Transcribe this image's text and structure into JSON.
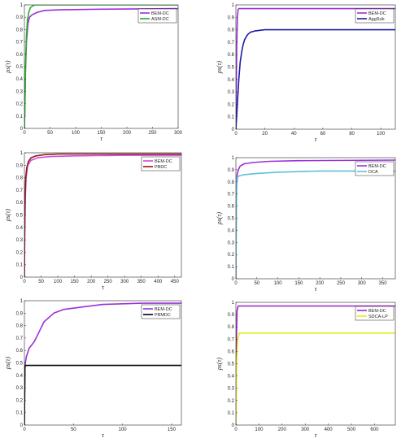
{
  "chart_data": [
    {
      "type": "line",
      "xlabel": "τ",
      "ylabel": "ρs(τ)",
      "xlim": [
        0,
        300
      ],
      "ylim": [
        0,
        1
      ],
      "xticks": [
        0,
        50,
        100,
        150,
        200,
        250,
        300
      ],
      "yticks": [
        0,
        0.1,
        0.2,
        0.3,
        0.4,
        0.5,
        0.6,
        0.7,
        0.8,
        0.9,
        1
      ],
      "grid": false,
      "legend": "top-right",
      "series": [
        {
          "name": "BEM-DC",
          "color": "#9b30d9",
          "x": [
            0,
            1,
            2,
            4,
            7,
            10,
            15,
            25,
            40,
            70,
            150,
            300
          ],
          "y": [
            0,
            0.18,
            0.45,
            0.7,
            0.85,
            0.9,
            0.92,
            0.94,
            0.955,
            0.96,
            0.965,
            0.97
          ]
        },
        {
          "name": "ASM-DC",
          "color": "#22b022",
          "x": [
            0,
            1,
            2,
            4,
            6,
            9,
            12,
            20,
            300
          ],
          "y": [
            0,
            0.2,
            0.5,
            0.75,
            0.88,
            0.95,
            0.98,
            1.0,
            1.0
          ]
        }
      ]
    },
    {
      "type": "line",
      "xlabel": "τ",
      "ylabel": "ρs(τ)",
      "xlim": [
        0,
        110
      ],
      "ylim": [
        0,
        1
      ],
      "xticks": [
        0,
        20,
        40,
        60,
        80,
        100
      ],
      "yticks": [
        0,
        0.1,
        0.2,
        0.3,
        0.4,
        0.5,
        0.6,
        0.7,
        0.8,
        0.9,
        1
      ],
      "grid": false,
      "legend": "top-right",
      "series": [
        {
          "name": "BEM-DC",
          "color": "#9b30d9",
          "x": [
            0,
            0.5,
            1,
            1.5,
            2,
            110
          ],
          "y": [
            0,
            0.6,
            0.9,
            0.96,
            0.97,
            0.97
          ]
        },
        {
          "name": "AggSub",
          "color": "#1c1ca8",
          "x": [
            0,
            1,
            2,
            3,
            4,
            5,
            6,
            8,
            10,
            13,
            16,
            20,
            110
          ],
          "y": [
            0,
            0.2,
            0.4,
            0.54,
            0.62,
            0.68,
            0.72,
            0.76,
            0.78,
            0.79,
            0.795,
            0.8,
            0.8
          ]
        }
      ]
    },
    {
      "type": "line",
      "xlabel": "τ",
      "ylabel": "ρs(τ)",
      "xlim": [
        0,
        470
      ],
      "ylim": [
        0,
        1
      ],
      "xticks": [
        0,
        50,
        100,
        150,
        200,
        250,
        300,
        350,
        400,
        450
      ],
      "yticks": [
        0,
        0.1,
        0.2,
        0.3,
        0.4,
        0.5,
        0.6,
        0.7,
        0.8,
        0.9,
        1
      ],
      "grid": false,
      "legend": "top-right",
      "series": [
        {
          "name": "BEM-DC",
          "color": "#d04bd8",
          "x": [
            0,
            1,
            3,
            5,
            10,
            20,
            40,
            80,
            150,
            300,
            470
          ],
          "y": [
            0,
            0.35,
            0.65,
            0.8,
            0.9,
            0.94,
            0.96,
            0.97,
            0.975,
            0.98,
            0.98
          ]
        },
        {
          "name": "PBDC",
          "color": "#8b1a1a",
          "x": [
            0,
            1,
            2,
            4,
            7,
            12,
            20,
            35,
            60,
            100,
            470
          ],
          "y": [
            0,
            0.45,
            0.65,
            0.8,
            0.88,
            0.93,
            0.96,
            0.975,
            0.985,
            0.99,
            0.99
          ]
        }
      ]
    },
    {
      "type": "line",
      "xlabel": "τ",
      "ylabel": "ρs(τ)",
      "xlim": [
        0,
        380
      ],
      "ylim": [
        0,
        1
      ],
      "xticks": [
        0,
        50,
        100,
        150,
        200,
        250,
        300,
        350
      ],
      "yticks": [
        0,
        0.1,
        0.2,
        0.3,
        0.4,
        0.5,
        0.6,
        0.7,
        0.8,
        0.9,
        1
      ],
      "grid": false,
      "legend": "top-right",
      "series": [
        {
          "name": "BEM-DC",
          "color": "#9b30d9",
          "x": [
            0,
            1,
            3,
            6,
            10,
            20,
            40,
            80,
            150,
            380
          ],
          "y": [
            0,
            0.7,
            0.86,
            0.9,
            0.93,
            0.95,
            0.96,
            0.97,
            0.975,
            0.98
          ]
        },
        {
          "name": "DCA",
          "color": "#5fc0d6",
          "x": [
            0,
            1,
            2,
            4,
            8,
            20,
            50,
            100,
            200,
            380
          ],
          "y": [
            0,
            0.5,
            0.78,
            0.84,
            0.85,
            0.86,
            0.87,
            0.88,
            0.89,
            0.89
          ]
        }
      ]
    },
    {
      "type": "line",
      "xlabel": "τ",
      "ylabel": "ρs(τ)",
      "xlim": [
        0,
        160
      ],
      "ylim": [
        0,
        1
      ],
      "xticks": [
        0,
        50,
        100,
        150
      ],
      "yticks": [
        0,
        0.1,
        0.2,
        0.3,
        0.4,
        0.5,
        0.6,
        0.7,
        0.8,
        0.9,
        1
      ],
      "grid": false,
      "legend": "top-right",
      "series": [
        {
          "name": "BEM-DC",
          "color": "#9b30d9",
          "x": [
            0,
            0.5,
            1,
            2,
            5,
            10,
            15,
            20,
            30,
            40,
            50,
            60,
            80,
            100,
            120,
            160
          ],
          "y": [
            0,
            0.45,
            0.5,
            0.55,
            0.62,
            0.67,
            0.75,
            0.83,
            0.9,
            0.93,
            0.94,
            0.95,
            0.97,
            0.975,
            0.98,
            0.98
          ]
        },
        {
          "name": "PBMDC",
          "color": "#000000",
          "x": [
            0,
            0.5,
            1,
            160
          ],
          "y": [
            0,
            0.47,
            0.48,
            0.48
          ]
        }
      ]
    },
    {
      "type": "line",
      "xlabel": "τ",
      "ylabel": "ρs(τ)",
      "xlim": [
        0,
        690
      ],
      "ylim": [
        0,
        1
      ],
      "xticks": [
        0,
        100,
        200,
        300,
        400,
        500,
        600
      ],
      "yticks": [
        0,
        0.1,
        0.2,
        0.3,
        0.4,
        0.5,
        0.6,
        0.7,
        0.8,
        0.9,
        1
      ],
      "grid": false,
      "legend": "top-right",
      "series": [
        {
          "name": "BEM-DC",
          "color": "#a020c8",
          "x": [
            0,
            2,
            5,
            10,
            690
          ],
          "y": [
            0,
            0.7,
            0.93,
            0.97,
            0.97
          ]
        },
        {
          "name": "SDCA-LP",
          "color": "#e8e81a",
          "x": [
            0,
            3,
            8,
            15,
            690
          ],
          "y": [
            0,
            0.5,
            0.7,
            0.75,
            0.75
          ]
        }
      ]
    }
  ]
}
